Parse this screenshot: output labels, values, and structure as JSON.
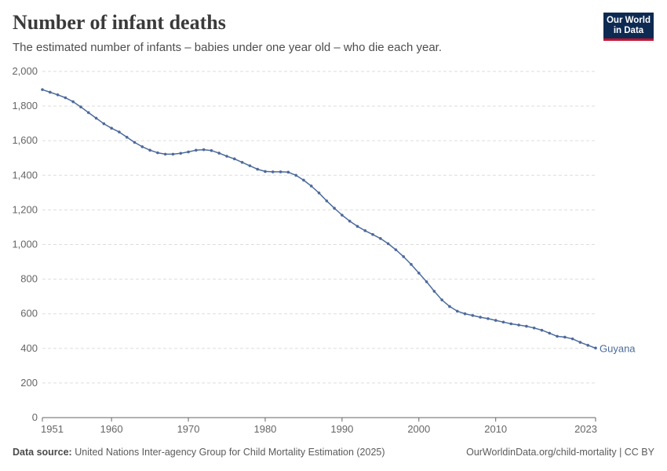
{
  "header": {
    "title": "Number of infant deaths",
    "subtitle": "The estimated number of infants – babies under one year old – who die each year."
  },
  "logo": {
    "line1": "Our World",
    "line2": "in Data"
  },
  "footer": {
    "source_label": "Data source:",
    "source_text": "United Nations Inter-agency Group for Child Mortality Estimation (2025)",
    "link_text": "OurWorldinData.org/child-mortality | CC BY"
  },
  "colors": {
    "series": "#4c6a9c",
    "grid": "#dddddd",
    "axis": "#666666",
    "text": "#666666"
  },
  "chart_data": {
    "type": "line",
    "title": "Number of infant deaths",
    "xlabel": "",
    "ylabel": "",
    "xlim": [
      1951,
      2023
    ],
    "ylim": [
      0,
      2000
    ],
    "x_ticks": [
      1951,
      1960,
      1970,
      1980,
      1990,
      2000,
      2010,
      2023
    ],
    "y_ticks": [
      0,
      200,
      400,
      600,
      800,
      1000,
      1200,
      1400,
      1600,
      1800,
      2000
    ],
    "y_tick_labels": [
      "0",
      "200",
      "400",
      "600",
      "800",
      "1,000",
      "1,200",
      "1,400",
      "1,600",
      "1,800",
      "2,000"
    ],
    "grid": true,
    "series": [
      {
        "name": "Guyana",
        "x": [
          1951,
          1952,
          1953,
          1954,
          1955,
          1956,
          1957,
          1958,
          1959,
          1960,
          1961,
          1962,
          1963,
          1964,
          1965,
          1966,
          1967,
          1968,
          1969,
          1970,
          1971,
          1972,
          1973,
          1974,
          1975,
          1976,
          1977,
          1978,
          1979,
          1980,
          1981,
          1982,
          1983,
          1984,
          1985,
          1986,
          1987,
          1988,
          1989,
          1990,
          1991,
          1992,
          1993,
          1994,
          1995,
          1996,
          1997,
          1998,
          1999,
          2000,
          2001,
          2002,
          2003,
          2004,
          2005,
          2006,
          2007,
          2008,
          2009,
          2010,
          2011,
          2012,
          2013,
          2014,
          2015,
          2016,
          2017,
          2018,
          2019,
          2020,
          2021,
          2022,
          2023
        ],
        "values": [
          1895,
          1880,
          1865,
          1848,
          1825,
          1795,
          1762,
          1730,
          1698,
          1672,
          1650,
          1620,
          1590,
          1565,
          1545,
          1530,
          1522,
          1522,
          1527,
          1535,
          1545,
          1548,
          1543,
          1528,
          1510,
          1495,
          1475,
          1455,
          1435,
          1422,
          1420,
          1420,
          1418,
          1400,
          1372,
          1338,
          1298,
          1252,
          1210,
          1170,
          1135,
          1105,
          1080,
          1058,
          1035,
          1005,
          970,
          930,
          885,
          835,
          785,
          730,
          680,
          642,
          615,
          600,
          590,
          580,
          572,
          562,
          552,
          542,
          535,
          528,
          518,
          505,
          488,
          470,
          465,
          455,
          435,
          418,
          402
        ]
      }
    ]
  }
}
